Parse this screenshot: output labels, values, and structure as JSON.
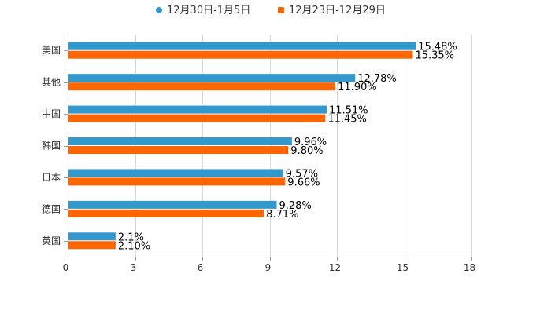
{
  "chart_data": {
    "type": "bar",
    "orientation": "horizontal",
    "title": "",
    "xlabel": "",
    "ylabel": "",
    "xlim": [
      0,
      18
    ],
    "ticks": [
      0,
      3,
      6,
      9,
      12,
      15,
      18
    ],
    "grid": true,
    "legend_position": "top-center",
    "categories": [
      "美国",
      "其他",
      "中国",
      "韩国",
      "日本",
      "德国",
      "英国"
    ],
    "series": [
      {
        "name": "12月30日-1月5日",
        "color": "#3399cc",
        "values": [
          15.48,
          12.78,
          11.51,
          9.96,
          9.57,
          9.28,
          2.1
        ],
        "labels": [
          "15.48%",
          "12.78%",
          "11.51%",
          "9.96%",
          "9.57%",
          "9.28%",
          "2.1%"
        ]
      },
      {
        "name": "12月23日-12月29日",
        "color": "#ff6600",
        "values": [
          15.35,
          11.9,
          11.45,
          9.8,
          9.66,
          8.71,
          2.1
        ],
        "labels": [
          "15.35%",
          "11.90%",
          "11.45%",
          "9.80%",
          "9.66%",
          "8.71%",
          "2.10%"
        ]
      }
    ]
  }
}
